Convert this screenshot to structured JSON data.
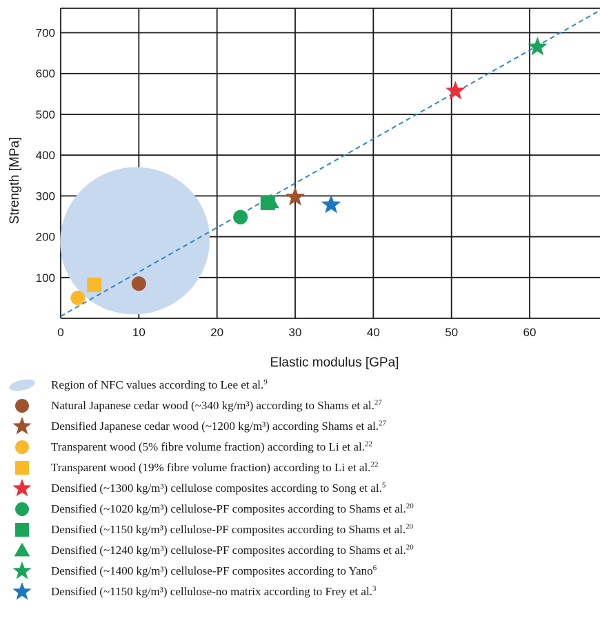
{
  "chart_data": {
    "type": "scatter",
    "xlabel": "Elastic modulus [GPa]",
    "ylabel": "Strength [MPa]",
    "xlim": [
      0,
      69
    ],
    "ylim": [
      0,
      760
    ],
    "x_ticks": [
      "0",
      "10",
      "20",
      "30",
      "40",
      "50",
      "60"
    ],
    "y_ticks": [
      "100",
      "200",
      "300",
      "400",
      "500",
      "600",
      "700"
    ],
    "grid": true,
    "trendline": {
      "x": [
        0,
        69
      ],
      "y": [
        5,
        755
      ],
      "style": "dashed",
      "color": "#2e86c9"
    },
    "nfc_region": {
      "center": [
        9.5,
        190
      ],
      "rx": 9.6,
      "ry": 180,
      "color": "#c6d9ee"
    },
    "series": [
      {
        "name": "Natural Japanese cedar wood (~340 kg/m³) according to Shams et al.",
        "ref": "27",
        "marker": "circle",
        "color": "#a0522d",
        "x": [
          10
        ],
        "y": [
          85
        ]
      },
      {
        "name": "Densified Japanese cedar wood (~1200 kg/m³) according Shams et al.",
        "ref": "27",
        "marker": "star",
        "color": "#a0522d",
        "x": [
          30
        ],
        "y": [
          297
        ]
      },
      {
        "name": "Transparent wood (5% fibre volume fraction) according to Li et al.",
        "ref": "22",
        "marker": "circle",
        "color": "#fbb829",
        "x": [
          2.2
        ],
        "y": [
          50
        ]
      },
      {
        "name": "Transparent wood (19% fibre volume fraction) according to Li et al.",
        "ref": "22",
        "marker": "square",
        "color": "#fbb829",
        "x": [
          4.3
        ],
        "y": [
          82
        ]
      },
      {
        "name": "Densified (~1300 kg/m³) cellulose composites according to Song et al.",
        "ref": "5",
        "marker": "star",
        "color": "#ee2e3a",
        "x": [
          50.5
        ],
        "y": [
          557
        ]
      },
      {
        "name": "Densified (~1020 kg/m³) cellulose-PF composites according to Shams et al.",
        "ref": "20",
        "marker": "circle",
        "color": "#1aa55b",
        "x": [
          23
        ],
        "y": [
          248
        ]
      },
      {
        "name": "Densified (~1150 kg/m³) cellulose-PF composites according to Shams et al.",
        "ref": "20",
        "marker": "square",
        "color": "#1aa55b",
        "x": [
          26.5
        ],
        "y": [
          283
        ]
      },
      {
        "name": "Densified (~1240 kg/m³) cellulose-PF composites according to Shams et al.",
        "ref": "20",
        "marker": "triangle",
        "color": "#1aa55b",
        "x": [
          26.9
        ],
        "y": [
          285
        ]
      },
      {
        "name": "Densified (~1400 kg/m³) cellulose-PF composites according to Yano",
        "ref": "6",
        "marker": "star",
        "color": "#1aa55b",
        "x": [
          61
        ],
        "y": [
          665
        ]
      },
      {
        "name": "Densified (~1150 kg/m³) cellulose-no matrix according to Frey et al.",
        "ref": "3",
        "marker": "star",
        "color": "#1a78c2",
        "x": [
          34.6
        ],
        "y": [
          278
        ]
      }
    ]
  },
  "legend": {
    "items": [
      {
        "text": "Region of NFC values according to Lee et al.",
        "ref": "9",
        "symbol": "ellipse",
        "color": "#c6d9ee"
      },
      {
        "text": "Natural Japanese cedar wood (~340 kg/m³) according to Shams et al.",
        "ref": "27",
        "symbol": "circle",
        "color": "#a0522d"
      },
      {
        "text": "Densified Japanese cedar wood (~1200 kg/m³) according Shams et al.",
        "ref": "27",
        "symbol": "star",
        "color": "#a0522d"
      },
      {
        "text": "Transparent wood (5% fibre volume fraction) according to Li et al.",
        "ref": "22",
        "symbol": "circle",
        "color": "#fbb829"
      },
      {
        "text": "Transparent wood (19% fibre volume fraction) according to Li et al.",
        "ref": "22",
        "symbol": "square",
        "color": "#fbb829"
      },
      {
        "text": "Densified (~1300 kg/m³) cellulose composites according to Song et al.",
        "ref": "5",
        "symbol": "star",
        "color": "#ee2e3a"
      },
      {
        "text": "Densified (~1020 kg/m³) cellulose-PF composites according to Shams et al.",
        "ref": "20",
        "symbol": "circle",
        "color": "#1aa55b"
      },
      {
        "text": "Densified (~1150 kg/m³) cellulose-PF composites according to Shams et al.",
        "ref": "20",
        "symbol": "square",
        "color": "#1aa55b"
      },
      {
        "text": "Densified (~1240 kg/m³) cellulose-PF composites according to Shams et al.",
        "ref": "20",
        "symbol": "triangle",
        "color": "#1aa55b"
      },
      {
        "text": "Densified (~1400 kg/m³) cellulose-PF composites according to Yano",
        "ref": "6",
        "symbol": "star",
        "color": "#1aa55b"
      },
      {
        "text": "Densified (~1150 kg/m³) cellulose-no matrix according to Frey et al.",
        "ref": "3",
        "symbol": "star",
        "color": "#1a78c2"
      }
    ]
  }
}
